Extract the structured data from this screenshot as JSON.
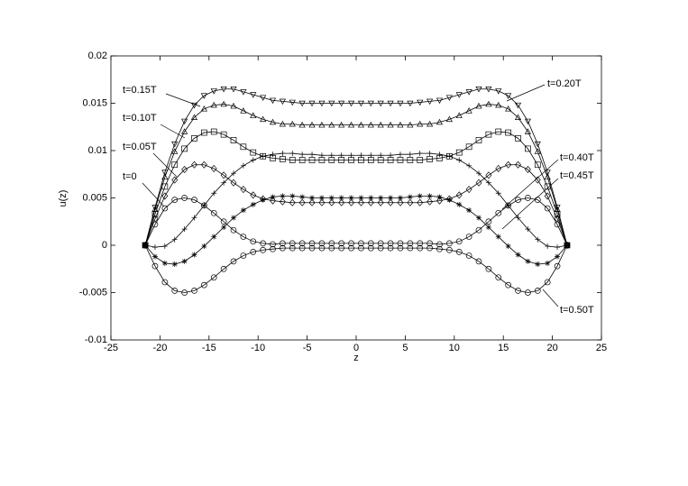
{
  "chart_data": {
    "type": "line",
    "x_label": "z",
    "y_label": "u(z)",
    "xlim": [
      -25,
      25
    ],
    "xticks": [
      -25,
      -20,
      -15,
      -10,
      -5,
      0,
      5,
      10,
      15,
      20,
      25
    ],
    "ylim": [
      -0.01,
      0.02
    ],
    "yticks": [
      -0.01,
      -0.005,
      0,
      0.005,
      0.01,
      0.015,
      0.02
    ],
    "box": true,
    "x": [
      -21.5,
      -20.5,
      -19.5,
      -18.5,
      -17.5,
      -16.5,
      -15.5,
      -14.5,
      -13.5,
      -12.5,
      -11.5,
      -10.5,
      -9.5,
      -8.5,
      -7.5,
      -6.5,
      -5.5,
      -4.5,
      -3.5,
      -2.5,
      -1.5,
      -0.5,
      0.5,
      1.5,
      2.5,
      3.5,
      4.5,
      5.5,
      6.5,
      7.5,
      8.5,
      9.5,
      10.5,
      11.5,
      12.5,
      13.5,
      14.5,
      15.5,
      16.5,
      17.5,
      18.5,
      19.5,
      20.5,
      21.5
    ],
    "series": [
      {
        "name": "t=0",
        "color": "#000000",
        "marker": "circle",
        "values": [
          0,
          0.0022,
          0.0039,
          0.0048,
          0.005,
          0.0048,
          0.0042,
          0.0034,
          0.0025,
          0.0016,
          0.0009,
          0.0004,
          0.0002,
          0.0001,
          0.0002,
          0.0002,
          0.0002,
          0.0002,
          0.0002,
          0.0002,
          0.0002,
          0.0002,
          0.0002,
          0.0002,
          0.0002,
          0.0002,
          0.0002,
          0.0002,
          0.0002,
          0.0002,
          0.0001,
          0.0002,
          0.0004,
          0.0009,
          0.0016,
          0.0025,
          0.0034,
          0.0042,
          0.0048,
          0.005,
          0.0048,
          0.0039,
          0.0022,
          0
        ]
      },
      {
        "name": "t=0.05T",
        "color": "#000000",
        "marker": "diamond",
        "values": [
          0,
          0.0028,
          0.0052,
          0.0069,
          0.008,
          0.0085,
          0.0085,
          0.0081,
          0.0074,
          0.0066,
          0.0059,
          0.0053,
          0.0049,
          0.0047,
          0.0046,
          0.0045,
          0.0045,
          0.0045,
          0.0045,
          0.0045,
          0.0045,
          0.0045,
          0.0045,
          0.0045,
          0.0045,
          0.0045,
          0.0045,
          0.0045,
          0.0045,
          0.0046,
          0.0047,
          0.0049,
          0.0053,
          0.0059,
          0.0066,
          0.0074,
          0.0081,
          0.0085,
          0.0085,
          0.008,
          0.0069,
          0.0052,
          0.0028,
          0
        ]
      },
      {
        "name": "t=0.10T",
        "color": "#000000",
        "marker": "square",
        "values": [
          0,
          0.0033,
          0.0062,
          0.0085,
          0.0102,
          0.0113,
          0.0119,
          0.012,
          0.0117,
          0.0111,
          0.0104,
          0.0098,
          0.0094,
          0.0092,
          0.0091,
          0.009,
          0.009,
          0.009,
          0.009,
          0.009,
          0.009,
          0.009,
          0.009,
          0.009,
          0.009,
          0.009,
          0.009,
          0.009,
          0.009,
          0.0091,
          0.0092,
          0.0094,
          0.0098,
          0.0104,
          0.0111,
          0.0117,
          0.012,
          0.0119,
          0.0113,
          0.0102,
          0.0085,
          0.0062,
          0.0033,
          0
        ]
      },
      {
        "name": "t=0.15T",
        "color": "#000000",
        "marker": "triangle-up",
        "values": [
          0,
          0.0038,
          0.0072,
          0.0099,
          0.012,
          0.0135,
          0.0144,
          0.0148,
          0.0149,
          0.0147,
          0.0142,
          0.0137,
          0.0133,
          0.013,
          0.0128,
          0.0128,
          0.0127,
          0.0127,
          0.0127,
          0.0127,
          0.0127,
          0.0127,
          0.0127,
          0.0127,
          0.0127,
          0.0127,
          0.0127,
          0.0127,
          0.0128,
          0.0128,
          0.013,
          0.0133,
          0.0137,
          0.0142,
          0.0147,
          0.0149,
          0.0148,
          0.0144,
          0.0135,
          0.012,
          0.0099,
          0.0072,
          0.0038,
          0
        ]
      },
      {
        "name": "t=0.20T",
        "color": "#000000",
        "marker": "triangle-down",
        "values": [
          0,
          0.004,
          0.0077,
          0.0107,
          0.0131,
          0.0148,
          0.0158,
          0.0163,
          0.0165,
          0.0165,
          0.0162,
          0.0159,
          0.0156,
          0.0153,
          0.0152,
          0.0151,
          0.015,
          0.015,
          0.015,
          0.015,
          0.015,
          0.015,
          0.015,
          0.015,
          0.015,
          0.015,
          0.015,
          0.015,
          0.0151,
          0.0152,
          0.0153,
          0.0156,
          0.0159,
          0.0162,
          0.0165,
          0.0165,
          0.0163,
          0.0158,
          0.0148,
          0.0131,
          0.0107,
          0.0077,
          0.004,
          0
        ]
      },
      {
        "name": "t=0.40T",
        "color": "#000000",
        "marker": "plus",
        "values": [
          0,
          -0.0002,
          -0.0001,
          0.0006,
          0.0017,
          0.0029,
          0.0042,
          0.0055,
          0.0066,
          0.0076,
          0.0084,
          0.009,
          0.0094,
          0.0096,
          0.0097,
          0.0097,
          0.0096,
          0.0096,
          0.0095,
          0.0095,
          0.0095,
          0.0095,
          0.0095,
          0.0095,
          0.0095,
          0.0095,
          0.0096,
          0.0096,
          0.0097,
          0.0097,
          0.0096,
          0.0094,
          0.009,
          0.0084,
          0.0076,
          0.0066,
          0.0055,
          0.0042,
          0.0029,
          0.0017,
          0.0006,
          -0.0001,
          -0.0002,
          0
        ]
      },
      {
        "name": "t=0.45T",
        "color": "#000000",
        "marker": "star",
        "values": [
          0,
          -0.0012,
          -0.0019,
          -0.002,
          -0.0017,
          -0.001,
          -0.0001,
          0.0009,
          0.0019,
          0.0029,
          0.0037,
          0.0043,
          0.0048,
          0.0051,
          0.0052,
          0.0052,
          0.0051,
          0.005,
          0.005,
          0.005,
          0.005,
          0.005,
          0.005,
          0.005,
          0.005,
          0.005,
          0.005,
          0.0051,
          0.0052,
          0.0052,
          0.0051,
          0.0048,
          0.0043,
          0.0037,
          0.0029,
          0.0019,
          0.0009,
          -0.0001,
          -0.001,
          -0.0017,
          -0.002,
          -0.0019,
          -0.0012,
          0
        ]
      },
      {
        "name": "t=0.50T",
        "color": "#000000",
        "marker": "circle",
        "values": [
          0,
          -0.0022,
          -0.0039,
          -0.0048,
          -0.005,
          -0.0048,
          -0.0042,
          -0.0034,
          -0.0025,
          -0.0017,
          -0.0011,
          -0.0007,
          -0.0005,
          -0.0004,
          -0.0003,
          -0.0003,
          -0.0003,
          -0.0003,
          -0.0003,
          -0.0003,
          -0.0003,
          -0.0003,
          -0.0003,
          -0.0003,
          -0.0003,
          -0.0003,
          -0.0003,
          -0.0003,
          -0.0003,
          -0.0003,
          -0.0004,
          -0.0005,
          -0.0007,
          -0.0011,
          -0.0017,
          -0.0025,
          -0.0034,
          -0.0042,
          -0.0048,
          -0.005,
          -0.0048,
          -0.0039,
          -0.0022,
          0
        ]
      }
    ]
  }
}
